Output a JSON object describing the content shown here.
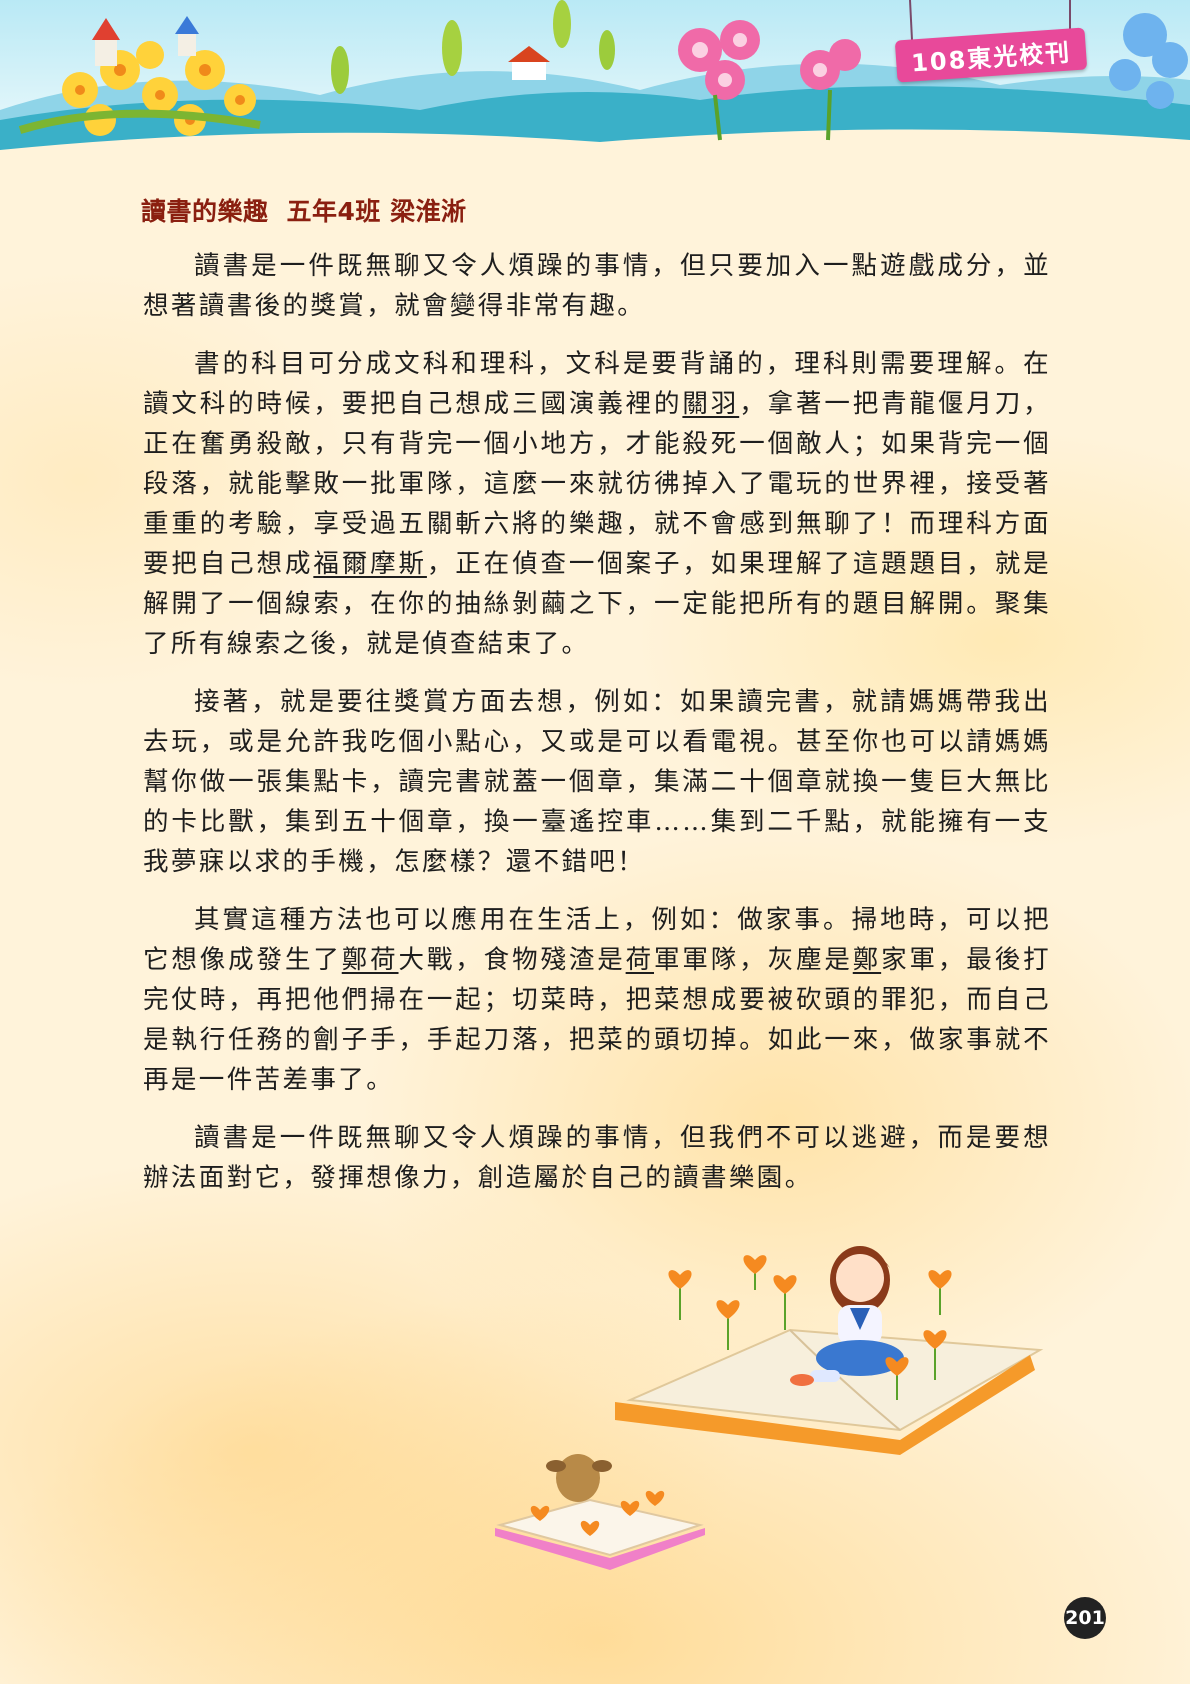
{
  "header": {
    "banner_text": "108東光校刊"
  },
  "article": {
    "title": "讀書的樂趣",
    "byline": "五年4班 梁淮淅",
    "p1": "讀書是一件既無聊又令人煩躁的事情，但只要加入一點遊戲成分，並想著讀書後的獎賞，就會變得非常有趣。",
    "p2": {
      "a": "書的科目可分成文科和理科，文科是要背誦的，理科則需要理解。在讀文科的時候，要把自己想成三國演義裡的",
      "b": "關羽",
      "c": "，拿著一把青龍偃月刀，正在奮勇殺敵，只有背完一個小地方，才能殺死一個敵人；如果背完一個段落，就能擊敗一批軍隊，這麼一來就彷彿掉入了電玩的世界裡，接受著重重的考驗，享受過五關斬六將的樂趣，就不會感到無聊了！而理科方面要把自己想成",
      "d": "福爾摩斯",
      "e": "，正在偵查一個案子，如果理解了這題題目，就是解開了一個線索，在你的抽絲剝繭之下，一定能把所有的題目解開。聚集了所有線索之後，就是偵查結束了。"
    },
    "p3": "接著，就是要往獎賞方面去想，例如：如果讀完書，就請媽媽帶我出去玩，或是允許我吃個小點心，又或是可以看電視。甚至你也可以請媽媽幫你做一張集點卡，讀完書就蓋一個章，集滿二十個章就換一隻巨大無比的卡比獸，集到五十個章，換一臺遙控車……集到二千點，就能擁有一支我夢寐以求的手機，怎麼樣？還不錯吧！",
    "p4": {
      "a": "其實這種方法也可以應用在生活上，例如：做家事。掃地時，可以把它想像成發生了",
      "b": "鄭荷",
      "c": "大戰，食物殘渣是",
      "d": "荷",
      "e": "軍軍隊，灰塵是",
      "f": "鄭",
      "g": "家軍，最後打完仗時，再把他們掃在一起；切菜時，把菜想成要被砍頭的罪犯，而自己是執行任務的劊子手，手起刀落，把菜的頭切掉。如此一來，做家事就不再是一件苦差事了。"
    },
    "p5": "讀書是一件既無聊又令人煩躁的事情，但我們不可以逃避，而是要想辦法面對它，發揮想像力，創造屬於自己的讀書樂園。"
  },
  "footer": {
    "page_number": "201"
  },
  "colors": {
    "title": "#8a1f10",
    "banner": "#e8499a",
    "background": "#fff3da"
  }
}
